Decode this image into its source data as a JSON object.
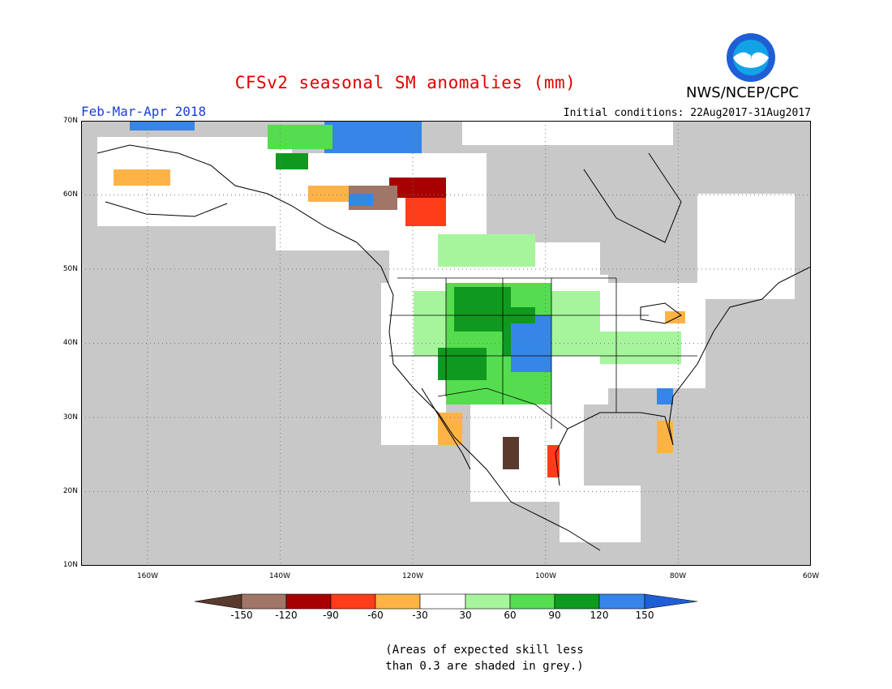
{
  "title": "CFSv2 seasonal SM anomalies (mm)",
  "organization": "NWS/NCEP/CPC",
  "logo": {
    "text": "NOAA",
    "icon": "noaa-logo-icon",
    "ring_color": "#1f5fd6",
    "bird_color": "#ffffff",
    "center_color": "#12a3e6"
  },
  "season": "Feb-Mar-Apr 2018",
  "initial_conditions": "Initial conditions: 22Aug2017-31Aug2017",
  "map": {
    "projection": "lat-lon",
    "lon_range": [
      -170,
      -60
    ],
    "lat_range": [
      10,
      70
    ],
    "grid": "dotted",
    "background_color": "#c8c8c8",
    "y_ticks": [
      "70N",
      "60N",
      "50N",
      "40N",
      "30N",
      "20N",
      "10N"
    ],
    "x_ticks": [
      "160W",
      "140W",
      "120W",
      "100W",
      "80W",
      "60W"
    ]
  },
  "legend": {
    "tick_labels": [
      "-150",
      "-120",
      "-90",
      "-60",
      "-30",
      "30",
      "60",
      "90",
      "120",
      "150"
    ],
    "colors": [
      "#5b3a2e",
      "#a07668",
      "#a80000",
      "#ff3d1a",
      "#ffb347",
      "#ffffff",
      "#a6f59c",
      "#55dd4f",
      "#0f9a1f",
      "#3586e6",
      "#1f5fd6"
    ]
  },
  "note": {
    "line1": "(Areas of expected skill less",
    "line2": "than 0.3 are shaded in grey.)"
  }
}
